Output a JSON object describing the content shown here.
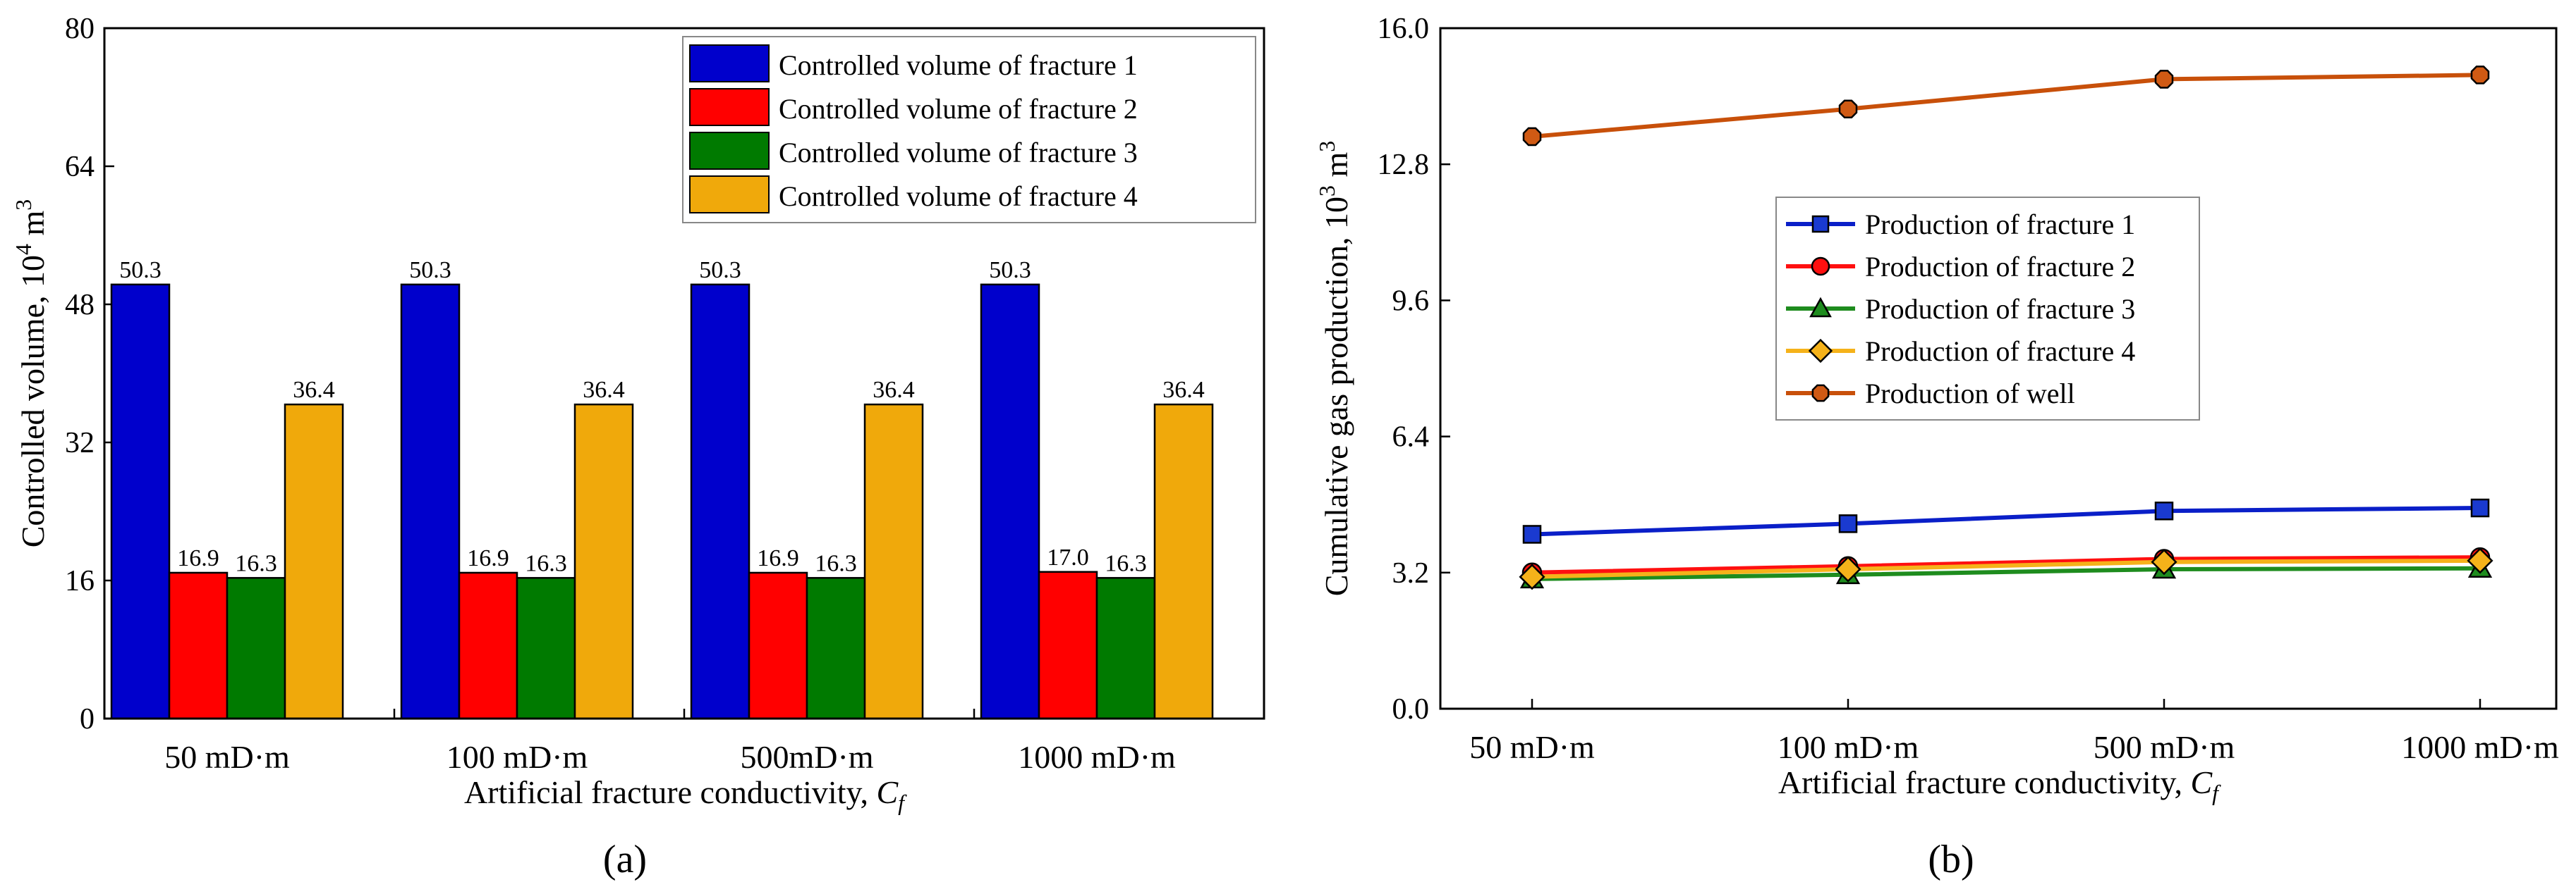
{
  "panels": {
    "a": "(a)",
    "b": "(b)"
  },
  "chart_data": [
    {
      "type": "bar",
      "panel": "a",
      "categories": [
        "50 mD·m",
        "100 mD·m",
        "500mD·m",
        "1000 mD·m"
      ],
      "series": [
        {
          "name": "Controlled volume of fracture 1",
          "color": "#0000CC",
          "values": [
            50.3,
            50.3,
            50.3,
            50.3
          ]
        },
        {
          "name": "Controlled volume of fracture 2",
          "color": "#FF0000",
          "values": [
            16.9,
            16.9,
            16.9,
            17.0
          ]
        },
        {
          "name": "Controlled volume of fracture 3",
          "color": "#007A00",
          "values": [
            16.3,
            16.3,
            16.3,
            16.3
          ]
        },
        {
          "name": "Controlled volume of fracture 4",
          "color": "#F0A90B",
          "values": [
            36.4,
            36.4,
            36.4,
            36.4
          ]
        }
      ],
      "data_labels": [
        [
          "50.3",
          "16.9",
          "16.3",
          "36.4"
        ],
        [
          "50.3",
          "16.9",
          "16.3",
          "36.4"
        ],
        [
          "50.3",
          "16.9",
          "16.3",
          "36.4"
        ],
        [
          "50.3",
          "17.0",
          "16.3",
          "36.4"
        ]
      ],
      "xlabel_main": "Artificial fracture conductivity, ",
      "xlabel_italic": "C",
      "xlabel_sub": "f",
      "ylabel_main": "Controlled volume, 10",
      "ylabel_sup": "4",
      "ylabel_unit": " m",
      "ylabel_unit_sup": "3",
      "ylim": [
        0,
        80
      ],
      "yticks": [
        0,
        16,
        32,
        48,
        64,
        80
      ],
      "ytick_labels": [
        "0",
        "16",
        "32",
        "48",
        "64",
        "80"
      ],
      "legend_position": "top-right"
    },
    {
      "type": "line",
      "panel": "b",
      "categories": [
        "50 mD·m",
        "100 mD·m",
        "500 mD·m",
        "1000 mD·m"
      ],
      "series": [
        {
          "name": "Production of fracture 1",
          "color": "#0A1FC8",
          "fill": "#1A3AD0",
          "marker": "square",
          "values": [
            4.1,
            4.35,
            4.65,
            4.72
          ]
        },
        {
          "name": "Production of fracture 2",
          "color": "#FF1010",
          "fill": "#FF1010",
          "marker": "circle",
          "values": [
            3.2,
            3.35,
            3.52,
            3.56
          ]
        },
        {
          "name": "Production of fracture 3",
          "color": "#1E8C1E",
          "fill": "#1E8C1E",
          "marker": "triangle",
          "values": [
            3.05,
            3.15,
            3.28,
            3.3
          ]
        },
        {
          "name": "Production of fracture 4",
          "color": "#F5B21A",
          "fill": "#F5B21A",
          "marker": "diamond",
          "values": [
            3.1,
            3.28,
            3.45,
            3.48
          ]
        },
        {
          "name": "Production of well",
          "color": "#C8500A",
          "fill": "#D05A14",
          "marker": "octagon",
          "values": [
            13.45,
            14.1,
            14.8,
            14.9
          ]
        }
      ],
      "xlabel_main": "Artificial fracture conductivity, ",
      "xlabel_italic": "C",
      "xlabel_sub": "f",
      "ylabel_main": "Cumulative gas production, 10",
      "ylabel_sup": "3",
      "ylabel_unit": " m",
      "ylabel_unit_sup": "3",
      "ylim": [
        0,
        16
      ],
      "yticks": [
        0,
        3.2,
        6.4,
        9.6,
        12.8,
        16
      ],
      "ytick_labels": [
        "0.0",
        "3.2",
        "6.4",
        "9.6",
        "12.8",
        "16.0"
      ],
      "legend_position": "center"
    }
  ]
}
